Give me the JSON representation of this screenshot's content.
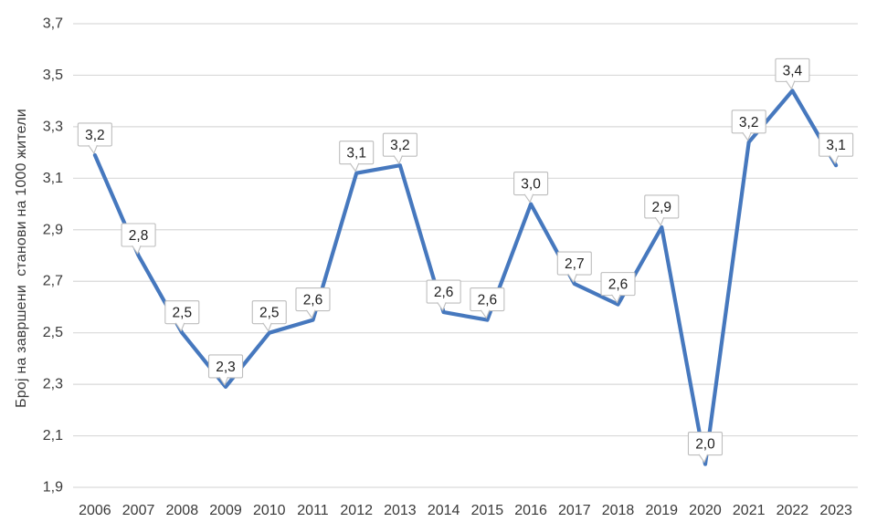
{
  "chart_data": {
    "type": "line",
    "title": "",
    "xlabel": "",
    "ylabel": "Број на завршени  станови на 1000 жители",
    "categories": [
      "2006",
      "2007",
      "2008",
      "2009",
      "2010",
      "2011",
      "2012",
      "2013",
      "2014",
      "2015",
      "2016",
      "2017",
      "2018",
      "2019",
      "2020",
      "2021",
      "2022",
      "2023"
    ],
    "values": [
      3.2,
      2.8,
      2.5,
      2.3,
      2.5,
      2.6,
      3.1,
      3.2,
      2.6,
      2.6,
      3.0,
      2.7,
      2.6,
      2.9,
      2.0,
      3.2,
      3.4,
      3.1
    ],
    "values_precise": [
      3.19,
      2.8,
      2.5,
      2.29,
      2.5,
      2.55,
      3.12,
      3.15,
      2.58,
      2.55,
      3.0,
      2.69,
      2.61,
      2.91,
      1.99,
      3.24,
      3.44,
      3.15
    ],
    "data_labels": [
      "3,2",
      "2,8",
      "2,5",
      "2,3",
      "2,5",
      "2,6",
      "3,1",
      "3,2",
      "2,6",
      "2,6",
      "3,0",
      "2,7",
      "2,6",
      "2,9",
      "2,0",
      "3,2",
      "3,4",
      "3,1"
    ],
    "y_ticks": [
      "1,9",
      "2,1",
      "2,3",
      "2,5",
      "2,7",
      "2,9",
      "3,1",
      "3,3",
      "3,5",
      "3,7"
    ],
    "ylim": [
      1.9,
      3.7
    ],
    "y_step": 0.2,
    "grid": true,
    "legend": "none",
    "decimal_separator": ",",
    "colors": {
      "line": "#4678BE",
      "gridline": "#D9D9D9",
      "axis_text": "#3A3A3A",
      "callout_fill": "#FFFFFF",
      "callout_border": "#BDBDBD",
      "callout_text": "#1E1E1E",
      "background": "#FFFFFF"
    }
  }
}
